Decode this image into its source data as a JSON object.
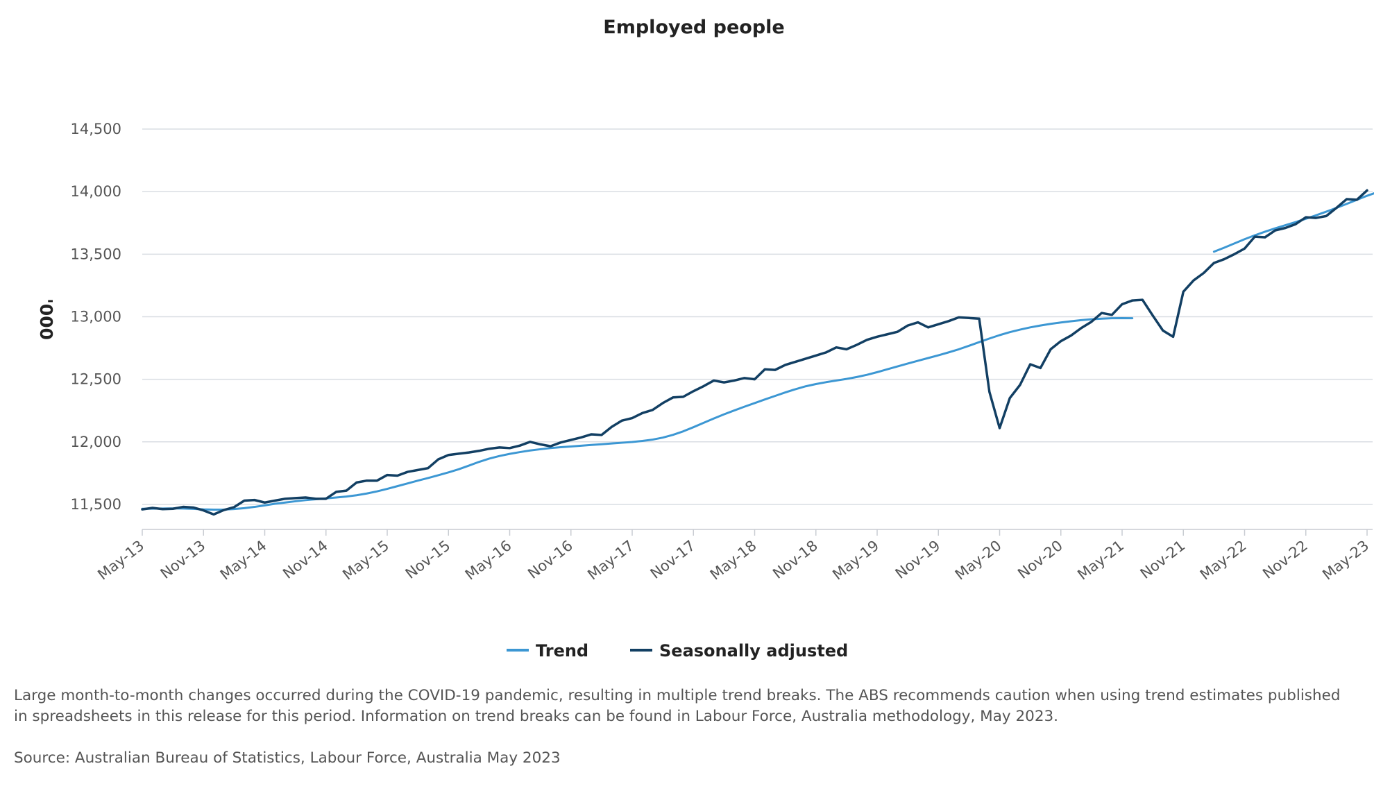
{
  "chart_data": {
    "type": "line",
    "title": "Employed people",
    "ylabel": "'000",
    "xlabel": "",
    "ylim": [
      11300,
      14700
    ],
    "yticks": [
      "11,500",
      "12,000",
      "12,500",
      "13,000",
      "13,500",
      "14,000",
      "14,500"
    ],
    "ytick_values": [
      11500,
      12000,
      12500,
      13000,
      13500,
      14000,
      14500
    ],
    "xtick_labels": [
      "May-13",
      "Nov-13",
      "May-14",
      "Nov-14",
      "May-15",
      "Nov-15",
      "May-16",
      "Nov-16",
      "May-17",
      "Nov-17",
      "May-18",
      "Nov-18",
      "May-19",
      "Nov-19",
      "May-20",
      "Nov-20",
      "May-21",
      "Nov-21",
      "May-22",
      "Nov-22",
      "May-23"
    ],
    "x_start": "May-13",
    "x_end": "May-23",
    "grid": true,
    "legend_position": "bottom",
    "series": [
      {
        "name": "Trend",
        "color": "#3c97d3",
        "segments": [
          {
            "start": "May-13",
            "values": [
              11465,
              11466,
              11467,
              11468,
              11467,
              11464,
              11460,
              11458,
              11459,
              11463,
              11470,
              11480,
              11492,
              11505,
              11515,
              11525,
              11534,
              11541,
              11548,
              11555,
              11563,
              11573,
              11587,
              11604,
              11624,
              11646,
              11668,
              11690,
              11711,
              11733,
              11756,
              11781,
              11810,
              11840,
              11866,
              11887,
              11904,
              11918,
              11931,
              11941,
              11950,
              11957,
              11963,
              11969,
              11975,
              11981,
              11987,
              11993,
              11999,
              12007,
              12018,
              12034,
              12056,
              12084,
              12117,
              12152,
              12187,
              12220,
              12251,
              12281,
              12310,
              12339,
              12367,
              12395,
              12421,
              12444,
              12462,
              12477,
              12490,
              12503,
              12518,
              12536,
              12557,
              12580,
              12603,
              12626,
              12648,
              12670,
              12692,
              12715,
              12740,
              12768,
              12797,
              12826,
              12853,
              12877,
              12897,
              12915,
              12930,
              12943,
              12954,
              12964,
              12973,
              12980,
              12985,
              12988,
              12989,
              12988
            ]
          },
          {
            "start": "Feb-22",
            "values": [
              13520,
              13552,
              13586,
              13620,
              13651,
              13680,
              13707,
              13732,
              13757,
              13783,
              13811,
              13840,
              13870,
              13902,
              13935,
              13967,
              13996,
              14020
            ]
          }
        ]
      },
      {
        "name": "Seasonally adjusted",
        "color": "#123f63",
        "start": "May-13",
        "values": [
          11460,
          11472,
          11462,
          11465,
          11480,
          11475,
          11452,
          11420,
          11455,
          11478,
          11530,
          11535,
          11515,
          11530,
          11545,
          11550,
          11555,
          11545,
          11545,
          11600,
          11610,
          11675,
          11690,
          11690,
          11735,
          11730,
          11760,
          11775,
          11790,
          11860,
          11895,
          11905,
          11915,
          11928,
          11945,
          11955,
          11950,
          11970,
          12000,
          11980,
          11965,
          11995,
          12015,
          12035,
          12060,
          12055,
          12120,
          12170,
          12190,
          12230,
          12255,
          12310,
          12355,
          12360,
          12405,
          12445,
          12490,
          12475,
          12490,
          12510,
          12500,
          12580,
          12575,
          12615,
          12640,
          12665,
          12690,
          12715,
          12755,
          12740,
          12775,
          12815,
          12840,
          12860,
          12880,
          12930,
          12955,
          12915,
          12940,
          12965,
          12995,
          12990,
          12985,
          12400,
          12110,
          12350,
          12455,
          12620,
          12590,
          12740,
          12805,
          12850,
          12910,
          12960,
          13030,
          13015,
          13100,
          13130,
          13135,
          13010,
          12890,
          12840,
          13200,
          13290,
          13350,
          13430,
          13460,
          13500,
          13545,
          13640,
          13635,
          13690,
          13710,
          13740,
          13795,
          13790,
          13805,
          13870,
          13940,
          13935,
          14010
        ]
      }
    ]
  },
  "note": "Large month-to-month changes occurred during the COVID-19 pandemic, resulting in multiple trend breaks. The ABS recommends caution when using trend estimates published in spreadsheets in this release for this period. Information on trend breaks can be found in Labour Force, Australia methodology, May 2023.",
  "source": "Source: Australian Bureau of Statistics, Labour Force, Australia May 2023"
}
